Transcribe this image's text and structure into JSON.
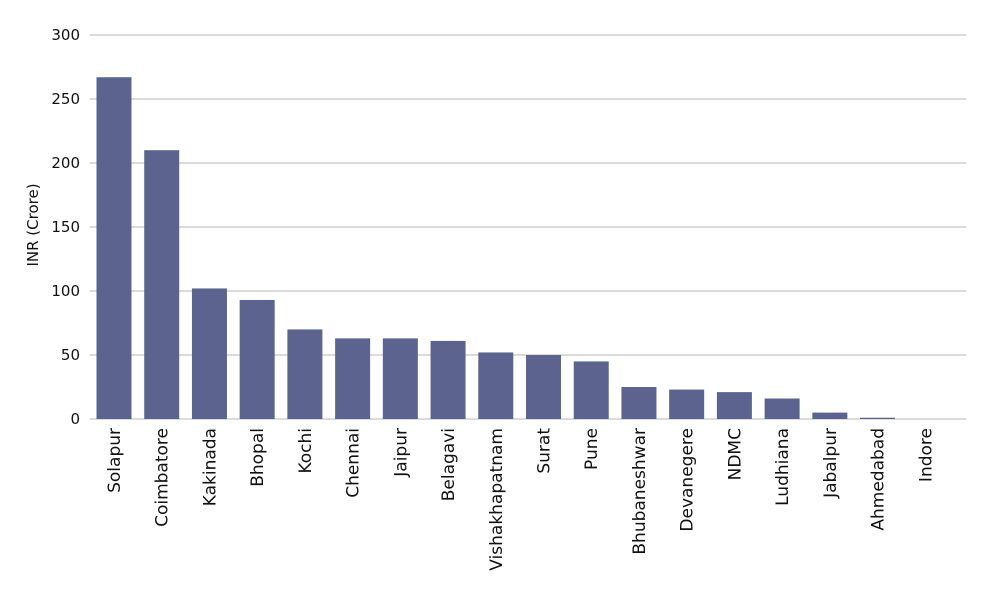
{
  "chart_data": {
    "type": "bar",
    "title": "",
    "xlabel": "",
    "ylabel": "INR  (Crore)",
    "ylim": [
      0,
      300
    ],
    "yticks": [
      0,
      50,
      100,
      150,
      200,
      250,
      300
    ],
    "grid": true,
    "legend": "none",
    "bar_color": "#5c638e",
    "categories": [
      "Solapur",
      "Coimbatore",
      "Kakinada",
      "Bhopal",
      "Kochi",
      "Chennai",
      "Jaipur",
      "Belagavi",
      "Vishakhapatnam",
      "Surat",
      "Pune",
      "Bhubaneshwar",
      "Devanegere",
      "NDMC",
      "Ludhiana",
      "Jabalpur",
      "Ahmedabad",
      "Indore"
    ],
    "values": [
      267,
      210,
      102,
      93,
      70,
      63,
      63,
      61,
      52,
      50,
      45,
      25,
      23,
      21,
      16,
      5,
      1,
      0
    ]
  }
}
